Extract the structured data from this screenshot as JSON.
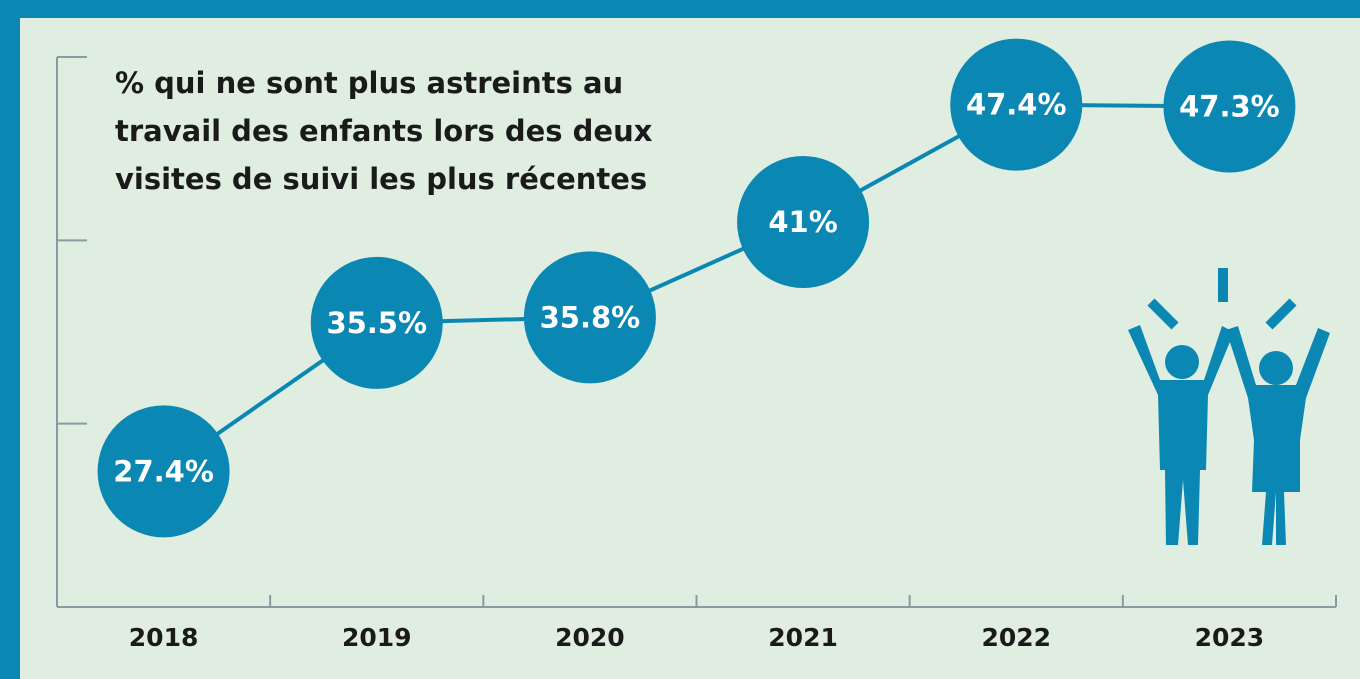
{
  "chart_data": {
    "type": "line",
    "title": [
      "% qui ne sont plus astreints au",
      "travail des enfants lors des deux",
      "visites de suivi les plus récentes"
    ],
    "categories": [
      "2018",
      "2019",
      "2020",
      "2021",
      "2022",
      "2023"
    ],
    "values": [
      27.4,
      35.5,
      35.8,
      41,
      47.4,
      47.3
    ],
    "value_labels": [
      "27.4%",
      "35.5%",
      "35.8%",
      "41%",
      "47.4%",
      "47.3%"
    ],
    "color": "#0b87b3",
    "ylim": [
      20,
      50
    ],
    "yticks": [
      20,
      30,
      40,
      50
    ]
  }
}
